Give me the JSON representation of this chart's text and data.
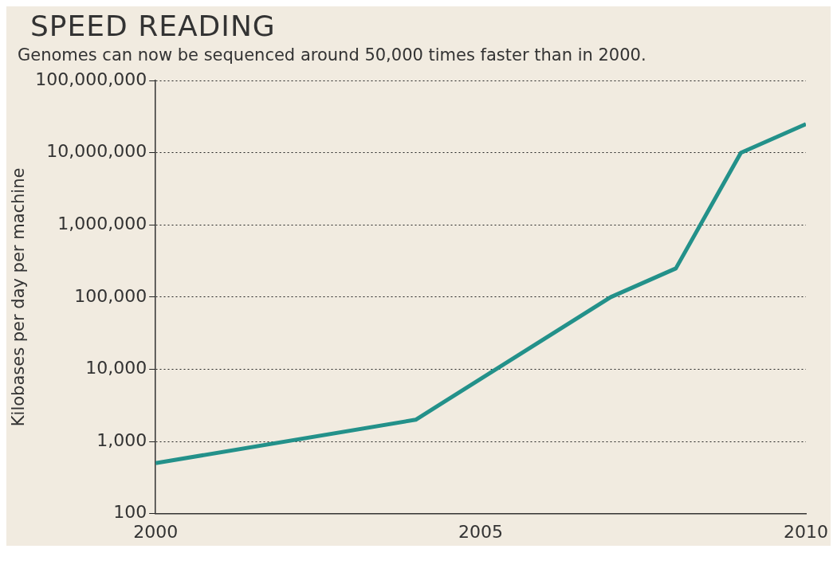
{
  "chart_data": {
    "type": "line",
    "title": "SPEED READING",
    "subtitle": "Genomes can now be sequenced around 50,000 times faster than in 2000.",
    "ylabel": "Kilobases per day per machine",
    "x": [
      2000,
      2004,
      2007,
      2008,
      2009,
      2010
    ],
    "series": [
      {
        "color": "#23918a",
        "values": [
          500,
          2000,
          100000,
          250000,
          10000000,
          25000000
        ]
      }
    ],
    "xlim": [
      2000,
      2010
    ],
    "xticks": [
      2000,
      2005,
      2010
    ],
    "ylim": [
      100,
      100000000
    ],
    "yticks": [
      {
        "value": 100,
        "label": "100"
      },
      {
        "value": 1000,
        "label": "1,000"
      },
      {
        "value": 10000,
        "label": "10,000"
      },
      {
        "value": 100000,
        "label": "100,000"
      },
      {
        "value": 1000000,
        "label": "1,000,000"
      },
      {
        "value": 10000000,
        "label": "10,000,000"
      },
      {
        "value": 100000000,
        "label": "100,000,000"
      }
    ],
    "log": "y",
    "grid": "y",
    "legend": false,
    "marker": "none",
    "line_style": "solid"
  }
}
